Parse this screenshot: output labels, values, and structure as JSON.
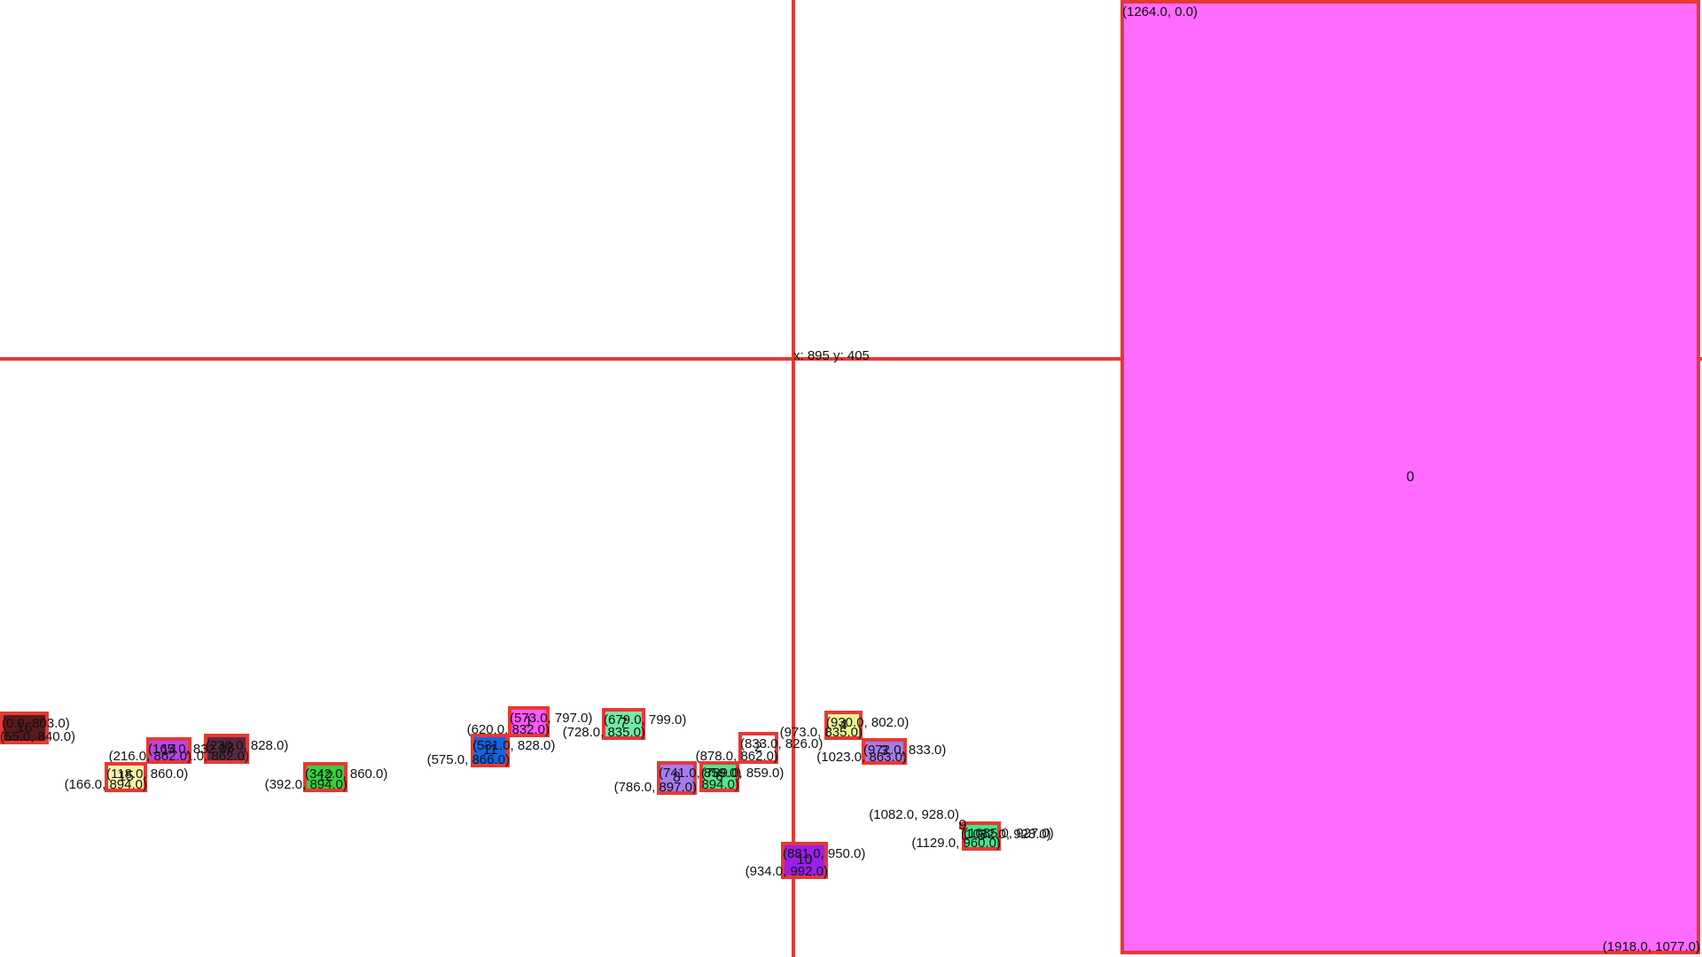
{
  "cursor": {
    "readout": "x: 895 y: 405"
  },
  "colors": {
    "outline": "#e53935"
  },
  "boxes": [
    {
      "id": "0",
      "color": "#ff6bff",
      "tl": "(1264.0, 0.0)",
      "br": "(1918.0, 1077.0)"
    },
    {
      "id": "1",
      "color": "#ff55ff",
      "tl": "(573.0, 797.0)",
      "br": "(620.0, 832.0)"
    },
    {
      "id": "2",
      "color": "#ffffff",
      "tl": "(833.0, 826.0)",
      "br": "(878.0, 862.0)"
    },
    {
      "id": "3",
      "color": "#a97ae8",
      "tl": "(972.0, 833.0)",
      "br": "(1023.0, 863.0)"
    },
    {
      "id": "4",
      "color": "#e9f593",
      "tl": "(930.0, 802.0)",
      "br": "(973.0, 835.0)"
    },
    {
      "id": "5",
      "color": "#3ee88a",
      "tl": "(1085.0, 927.0)",
      "br": "(1129.0, 960.0)"
    },
    {
      "id": "6",
      "color": "#50e68a",
      "tl": "(789.0, 859.0)",
      "br": "(834.0, 894.0)"
    },
    {
      "id": "7",
      "color": "#74e8a3",
      "tl": "(679.0, 799.0)",
      "br": "(728.0, 835.0)"
    },
    {
      "id": "8",
      "color": "#a57cf0",
      "tl": "(741.0, 859.0)",
      "br": "(786.0, 897.0)"
    },
    {
      "id": "9",
      "color": "#ff6b6b",
      "tl": "(1082.0, 928.0)",
      "br": "(1082.0, 928.0)"
    },
    {
      "id": "10",
      "color": "#9b1fe8",
      "tl": "(881.0, 950.0)",
      "br": "(934.0, 992.0)"
    },
    {
      "id": "11",
      "color": "#1763e6",
      "tl": "(531.0, 828.0)",
      "br": "(575.0, 866.0)"
    },
    {
      "id": "12",
      "color": "#34d13c",
      "tl": "(342.0, 860.0)",
      "br": "(392.0, 894.0)"
    },
    {
      "id": "13",
      "color": "#5a2a45",
      "tl": "(230.0, 828.0)",
      "br": "(281.0, 862.0)"
    },
    {
      "id": "14",
      "color": "#bb44e6",
      "tl": "(165.0, 832.0)",
      "br": "(216.0, 862.0)"
    },
    {
      "id": "15",
      "color": "#fbf3a8",
      "tl": "(118.0, 860.0)",
      "br": "(166.0, 894.0)"
    },
    {
      "id": "16",
      "color": "#5b1a1a",
      "tl": "(0.0, 803.0)",
      "br": "(55.0, 840.0)"
    }
  ]
}
